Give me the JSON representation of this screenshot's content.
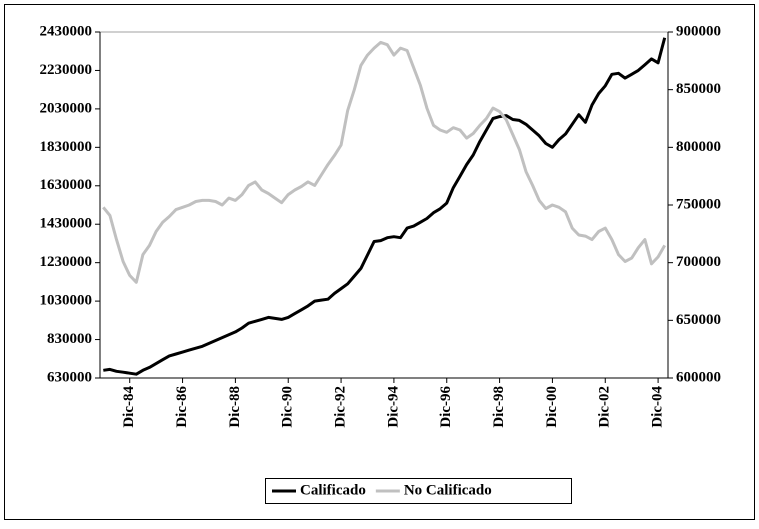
{
  "chart_data": {
    "type": "line",
    "categories": [
      null,
      null,
      null,
      null,
      "Dic-84",
      null,
      null,
      null,
      null,
      null,
      null,
      null,
      "Dic-86",
      null,
      null,
      null,
      null,
      null,
      null,
      null,
      "Dic-88",
      null,
      null,
      null,
      null,
      null,
      null,
      null,
      "Dic-90",
      null,
      null,
      null,
      null,
      null,
      null,
      null,
      "Dic-92",
      null,
      null,
      null,
      null,
      null,
      null,
      null,
      "Dic-94",
      null,
      null,
      null,
      null,
      null,
      null,
      null,
      "Dic-96",
      null,
      null,
      null,
      null,
      null,
      null,
      null,
      "Dic-98",
      null,
      null,
      null,
      null,
      null,
      null,
      null,
      "Dic-00",
      null,
      null,
      null,
      null,
      null,
      null,
      null,
      "Dic-02",
      null,
      null,
      null,
      null,
      null,
      null,
      null,
      "Dic-04",
      null
    ],
    "series": [
      {
        "name": "Calificado",
        "color": "#000000",
        "values": [
          670000,
          675000,
          665000,
          660000,
          655000,
          650000,
          670000,
          685000,
          705000,
          725000,
          745000,
          755000,
          765000,
          775000,
          785000,
          795000,
          810000,
          825000,
          840000,
          855000,
          870000,
          890000,
          915000,
          925000,
          935000,
          945000,
          940000,
          935000,
          945000,
          965000,
          985000,
          1005000,
          1030000,
          1035000,
          1040000,
          1070000,
          1095000,
          1120000,
          1160000,
          1200000,
          1270000,
          1340000,
          1345000,
          1360000,
          1365000,
          1360000,
          1410000,
          1420000,
          1440000,
          1460000,
          1490000,
          1510000,
          1540000,
          1620000,
          1680000,
          1740000,
          1790000,
          1860000,
          1920000,
          1980000,
          1990000,
          1995000,
          1975000,
          1970000,
          1950000,
          1920000,
          1890000,
          1850000,
          1830000,
          1870000,
          1900000,
          1950000,
          2000000,
          1960000,
          2050000,
          2110000,
          2150000,
          2210000,
          2215000,
          2190000,
          2210000,
          2230000,
          2260000,
          2290000,
          2270000,
          2400000
        ]
      },
      {
        "name": "No Calificado",
        "color": "#c0c0c0",
        "axis": "y2",
        "values": [
          748000,
          741000,
          720000,
          701000,
          689000,
          683000,
          707000,
          715000,
          727000,
          735000,
          740000,
          746000,
          748000,
          750000,
          753000,
          754000,
          754000,
          753000,
          750000,
          756000,
          754000,
          759000,
          767000,
          770000,
          763000,
          760000,
          756000,
          752000,
          759000,
          763000,
          766000,
          770000,
          767000,
          776000,
          785000,
          793000,
          802000,
          832000,
          850000,
          871000,
          880000,
          886000,
          891000,
          889000,
          880000,
          886000,
          884000,
          869000,
          854000,
          834000,
          819000,
          815000,
          813000,
          817000,
          815000,
          808000,
          812000,
          819000,
          825000,
          834000,
          831000,
          824000,
          811000,
          798000,
          779000,
          767000,
          754000,
          747000,
          750000,
          748000,
          744000,
          730000,
          724000,
          723000,
          720000,
          727000,
          730000,
          720000,
          707000,
          701000,
          704000,
          713000,
          720000,
          699000,
          705000,
          715000
        ]
      }
    ],
    "ylim": [
      630000,
      2430000
    ],
    "yticks": [
      630000,
      830000,
      1030000,
      1230000,
      1430000,
      1630000,
      1830000,
      2030000,
      2230000,
      2430000
    ],
    "y2lim": [
      600000,
      900000
    ],
    "y2ticks": [
      600000,
      650000,
      700000,
      750000,
      800000,
      850000,
      900000
    ],
    "legend": "bottom"
  }
}
